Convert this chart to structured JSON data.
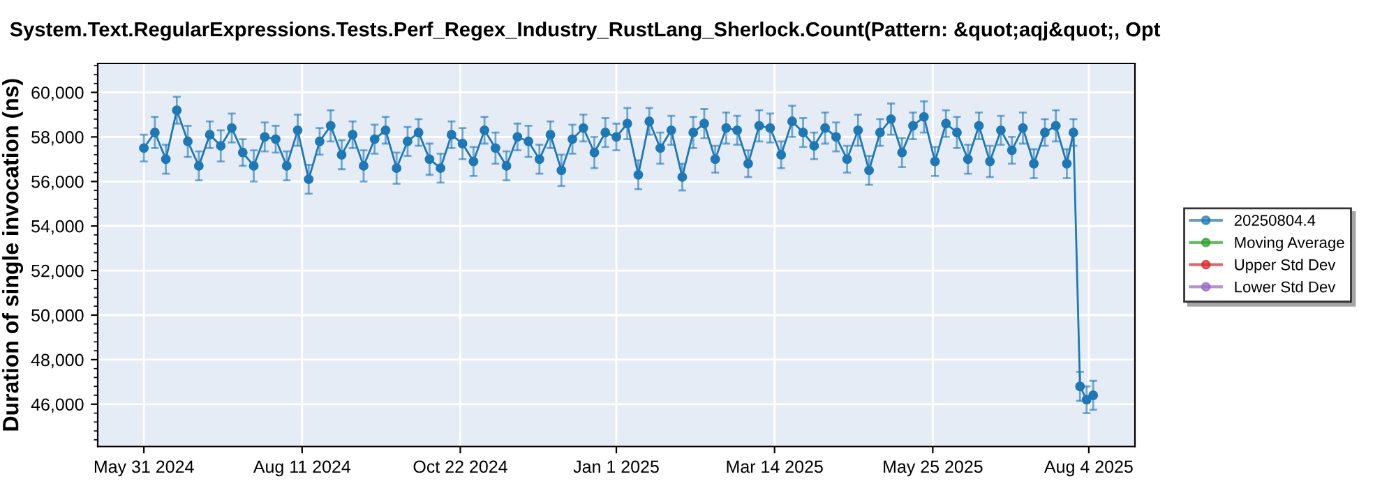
{
  "chart_data": {
    "type": "line",
    "title": "System.Text.RegularExpressions.Tests.Perf_Regex_Industry_RustLang_Sherlock.Count(Pattern: &quot;aqj&quot;, Opt",
    "ylabel": "Duration of single invocation (ns)",
    "x": [
      "2024-05-31",
      "2024-06-05",
      "2024-06-10",
      "2024-06-15",
      "2024-06-20",
      "2024-06-25",
      "2024-06-30",
      "2024-07-05",
      "2024-07-10",
      "2024-07-15",
      "2024-07-20",
      "2024-07-25",
      "2024-07-30",
      "2024-08-04",
      "2024-08-09",
      "2024-08-14",
      "2024-08-19",
      "2024-08-24",
      "2024-08-29",
      "2024-09-03",
      "2024-09-08",
      "2024-09-13",
      "2024-09-18",
      "2024-09-23",
      "2024-09-28",
      "2024-10-03",
      "2024-10-08",
      "2024-10-13",
      "2024-10-18",
      "2024-10-23",
      "2024-10-28",
      "2024-11-02",
      "2024-11-07",
      "2024-11-12",
      "2024-11-17",
      "2024-11-22",
      "2024-11-27",
      "2024-12-02",
      "2024-12-07",
      "2024-12-12",
      "2024-12-17",
      "2024-12-22",
      "2024-12-27",
      "2025-01-01",
      "2025-01-06",
      "2025-01-11",
      "2025-01-16",
      "2025-01-21",
      "2025-01-26",
      "2025-01-31",
      "2025-02-05",
      "2025-02-10",
      "2025-02-15",
      "2025-02-20",
      "2025-02-25",
      "2025-03-02",
      "2025-03-07",
      "2025-03-12",
      "2025-03-17",
      "2025-03-22",
      "2025-03-27",
      "2025-04-01",
      "2025-04-06",
      "2025-04-11",
      "2025-04-16",
      "2025-04-21",
      "2025-04-26",
      "2025-05-01",
      "2025-05-06",
      "2025-05-11",
      "2025-05-16",
      "2025-05-21",
      "2025-05-26",
      "2025-05-31",
      "2025-06-05",
      "2025-06-10",
      "2025-06-15",
      "2025-06-20",
      "2025-06-25",
      "2025-06-30",
      "2025-07-05",
      "2025-07-10",
      "2025-07-15",
      "2025-07-20",
      "2025-07-25",
      "2025-07-28",
      "2025-07-31",
      "2025-08-03",
      "2025-08-06"
    ],
    "series": [
      {
        "name": "20250804.4",
        "color": "#1f77b4",
        "values": [
          57500,
          58200,
          57000,
          59200,
          57800,
          56700,
          58100,
          57600,
          58400,
          57300,
          56700,
          58000,
          57900,
          56700,
          58300,
          56100,
          57800,
          58500,
          57200,
          58100,
          56700,
          57900,
          58300,
          56600,
          57800,
          58200,
          57000,
          56600,
          58100,
          57700,
          56900,
          58300,
          57500,
          56700,
          58000,
          57800,
          57000,
          58100,
          56500,
          57900,
          58400,
          57300,
          58200,
          58000,
          58600,
          56300,
          58700,
          57500,
          58300,
          56200,
          58200,
          58600,
          57000,
          58400,
          58300,
          56800,
          58500,
          58400,
          57200,
          58700,
          58200,
          57600,
          58400,
          58000,
          57000,
          58300,
          56500,
          58200,
          58800,
          57300,
          58500,
          58900,
          56900,
          58600,
          58200,
          57000,
          58500,
          56900,
          58300,
          57400,
          58400,
          56800,
          58200,
          58500,
          56800,
          58200,
          46800,
          46200,
          46400
        ],
        "errors": [
          600,
          700,
          650,
          600,
          700,
          650,
          600,
          700,
          650,
          600,
          700,
          650,
          600,
          650,
          700,
          650,
          600,
          700,
          650,
          600,
          700,
          650,
          600,
          700,
          650,
          600,
          700,
          650,
          600,
          700,
          650,
          600,
          700,
          650,
          600,
          700,
          650,
          600,
          700,
          650,
          600,
          700,
          650,
          600,
          700,
          650,
          600,
          700,
          650,
          600,
          700,
          650,
          600,
          700,
          650,
          600,
          700,
          650,
          600,
          700,
          650,
          600,
          700,
          650,
          600,
          700,
          650,
          600,
          700,
          650,
          600,
          700,
          650,
          600,
          700,
          650,
          600,
          700,
          650,
          600,
          700,
          650,
          600,
          700,
          650,
          600,
          650,
          600,
          650
        ]
      },
      {
        "name": "Moving Average",
        "color": "#2ca02c",
        "values": [
          null,
          null,
          null,
          null,
          null,
          null,
          null,
          null,
          null,
          null,
          null,
          null,
          null,
          null,
          null,
          null,
          null,
          null,
          null,
          null,
          null,
          null,
          null,
          null,
          null,
          null,
          null,
          null,
          null,
          null,
          null,
          null,
          null,
          null,
          null,
          null,
          null,
          null,
          null,
          null,
          null,
          null,
          null,
          null,
          null,
          null,
          null,
          null,
          null,
          null,
          null,
          null,
          null,
          null,
          null,
          null,
          null,
          null,
          null,
          null,
          null,
          null,
          null,
          null,
          null,
          null,
          null,
          null,
          null,
          null,
          null,
          null,
          null,
          null,
          null,
          null,
          null,
          null,
          null,
          null,
          null,
          null,
          null,
          null,
          null,
          null,
          null,
          null,
          null
        ]
      },
      {
        "name": "Upper Std Dev",
        "color": "#d62728",
        "values": [
          null,
          null,
          null,
          null,
          null,
          null,
          null,
          null,
          null,
          null,
          null,
          null,
          null,
          null,
          null,
          null,
          null,
          null,
          null,
          null,
          null,
          null,
          null,
          null,
          null,
          null,
          null,
          null,
          null,
          null,
          null,
          null,
          null,
          null,
          null,
          null,
          null,
          null,
          null,
          null,
          null,
          null,
          null,
          null,
          null,
          null,
          null,
          null,
          null,
          null,
          null,
          null,
          null,
          null,
          null,
          null,
          null,
          null,
          null,
          null,
          null,
          null,
          null,
          null,
          null,
          null,
          null,
          null,
          null,
          null,
          null,
          null,
          null,
          null,
          null,
          null,
          null,
          null,
          null,
          null,
          null,
          null,
          null,
          null,
          null,
          null,
          null,
          null,
          null
        ]
      },
      {
        "name": "Lower Std Dev",
        "color": "#9467bd",
        "values": [
          null,
          null,
          null,
          null,
          null,
          null,
          null,
          null,
          null,
          null,
          null,
          null,
          null,
          null,
          null,
          null,
          null,
          null,
          null,
          null,
          null,
          null,
          null,
          null,
          null,
          null,
          null,
          null,
          null,
          null,
          null,
          null,
          null,
          null,
          null,
          null,
          null,
          null,
          null,
          null,
          null,
          null,
          null,
          null,
          null,
          null,
          null,
          null,
          null,
          null,
          null,
          null,
          null,
          null,
          null,
          null,
          null,
          null,
          null,
          null,
          null,
          null,
          null,
          null,
          null,
          null,
          null,
          null,
          null,
          null,
          null,
          null,
          null,
          null,
          null,
          null,
          null,
          null,
          null,
          null,
          null,
          null,
          null,
          null,
          null,
          null,
          null,
          null,
          null
        ]
      }
    ],
    "xlim": [
      "2024-05-10",
      "2025-08-25"
    ],
    "xticks": [
      {
        "value": "2024-05-31",
        "label": "May 31 2024"
      },
      {
        "value": "2024-08-11",
        "label": "Aug 11 2024"
      },
      {
        "value": "2024-10-22",
        "label": "Oct 22 2024"
      },
      {
        "value": "2025-01-01",
        "label": "Jan 1 2025"
      },
      {
        "value": "2025-03-14",
        "label": "Mar 14 2025"
      },
      {
        "value": "2025-05-25",
        "label": "May 25 2025"
      },
      {
        "value": "2025-08-04",
        "label": "Aug 4 2025"
      }
    ],
    "ylim": [
      44100,
      61300
    ],
    "yticks": [
      {
        "value": 46000,
        "label": "46,000"
      },
      {
        "value": 48000,
        "label": "48,000"
      },
      {
        "value": 50000,
        "label": "50,000"
      },
      {
        "value": 52000,
        "label": "52,000"
      },
      {
        "value": 54000,
        "label": "54,000"
      },
      {
        "value": 56000,
        "label": "56,000"
      },
      {
        "value": 58000,
        "label": "58,000"
      },
      {
        "value": 60000,
        "label": "60,000"
      }
    ],
    "grid": true,
    "legend": "right",
    "marker": "circle",
    "line_style": "solid"
  }
}
